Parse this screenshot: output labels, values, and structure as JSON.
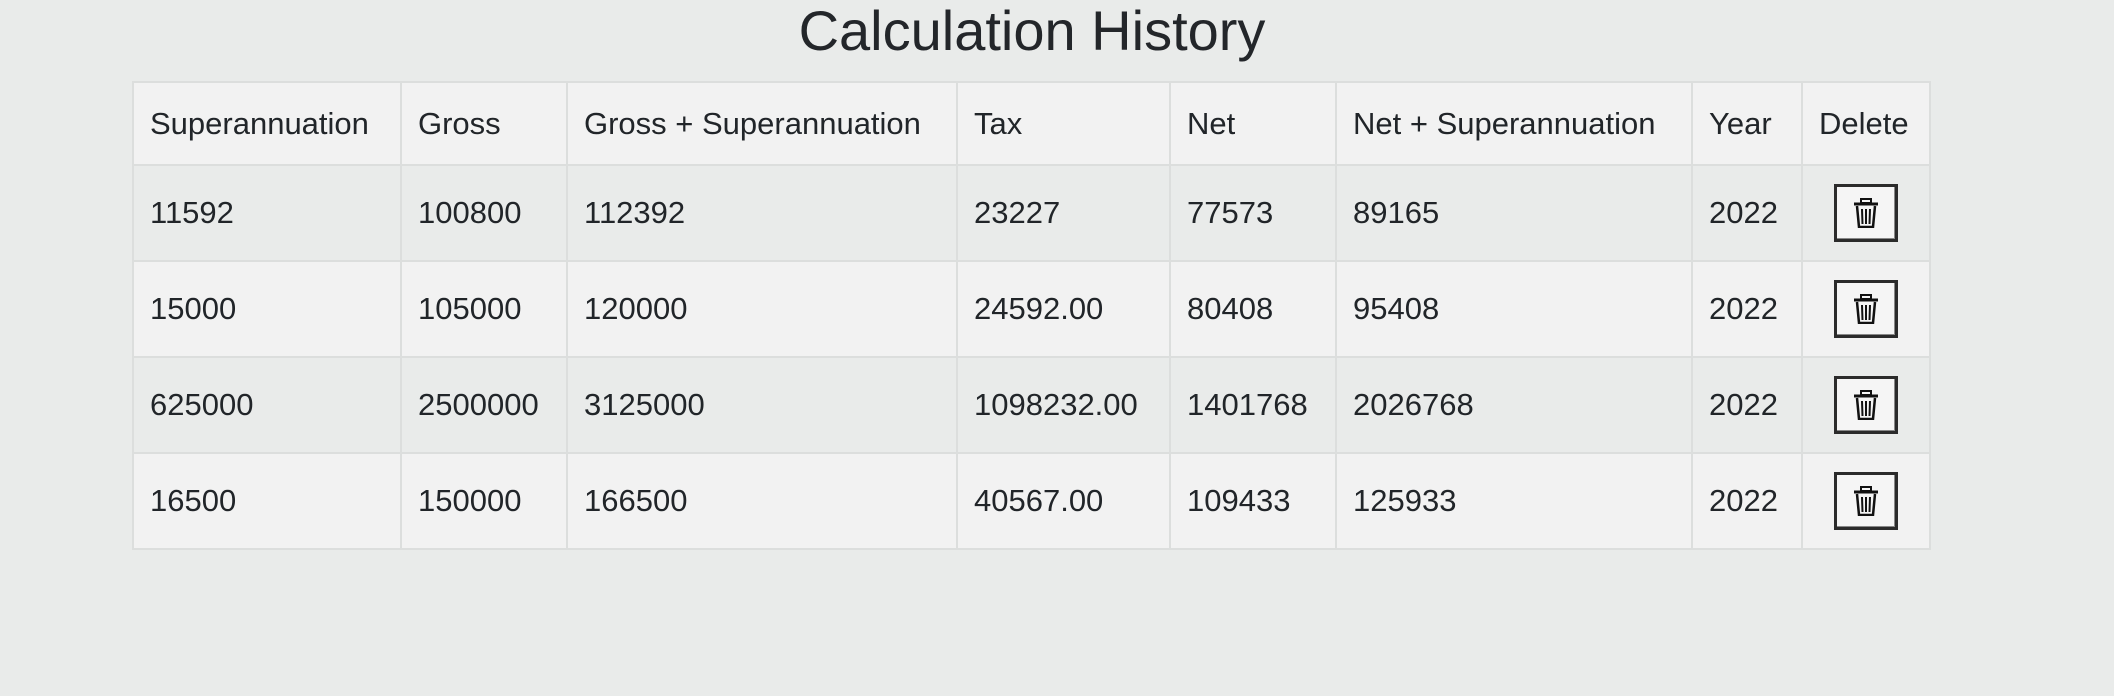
{
  "page": {
    "title": "Calculation History"
  },
  "table": {
    "headers": [
      "Superannuation",
      "Gross",
      "Gross + Superannuation",
      "Tax",
      "Net",
      "Net + Superannuation",
      "Year",
      "Delete"
    ],
    "rows": [
      {
        "superannuation": "11592",
        "gross": "100800",
        "gross_super": "112392",
        "tax": "23227",
        "net": "77573",
        "net_super": "89165",
        "year": "2022"
      },
      {
        "superannuation": "15000",
        "gross": "105000",
        "gross_super": "120000",
        "tax": "24592.00",
        "net": "80408",
        "net_super": "95408",
        "year": "2022"
      },
      {
        "superannuation": "625000",
        "gross": "2500000",
        "gross_super": "3125000",
        "tax": "1098232.00",
        "net": "1401768",
        "net_super": "2026768",
        "year": "2022"
      },
      {
        "superannuation": "16500",
        "gross": "150000",
        "gross_super": "166500",
        "tax": "40567.00",
        "net": "109433",
        "net_super": "125933",
        "year": "2022"
      }
    ],
    "delete_icon": "trash-icon"
  }
}
